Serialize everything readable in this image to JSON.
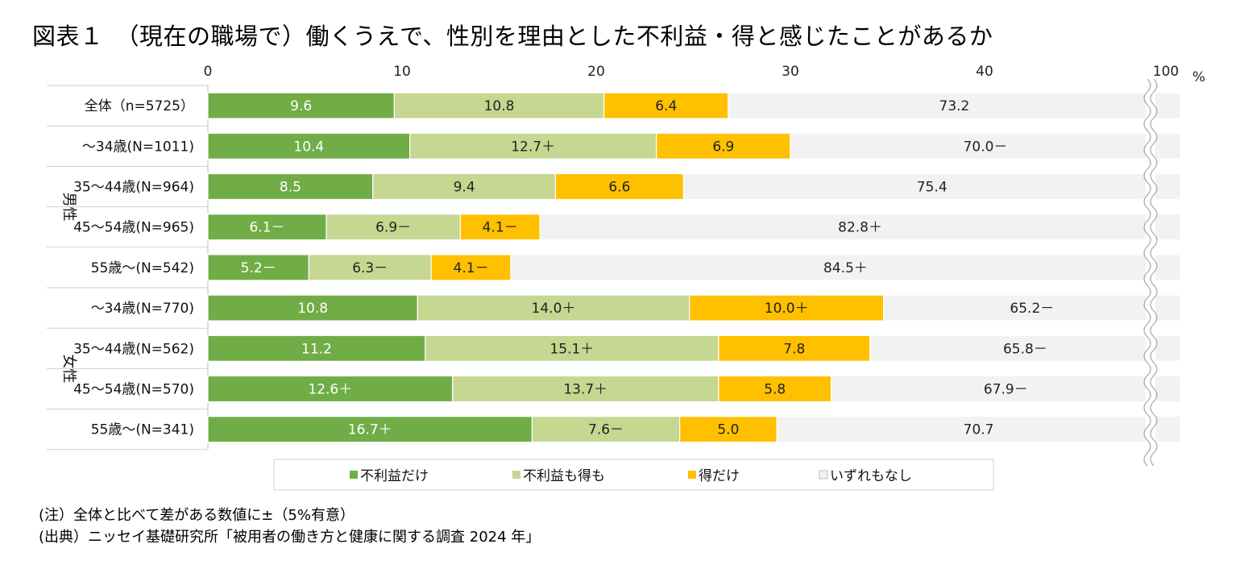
{
  "title": "図表１　（現在の職場で）働くうえで、性別を理由とした不利益・得と感じたことがあるか",
  "notes": {
    "note": "(注）全体と比べて差がある数値に±（5%有意）",
    "source": "(出典）ニッセイ基礎研究所「被用者の働き方と健康に関する調査 2024 年」"
  },
  "colors": {
    "disadvantage_only": "#70ad47",
    "both": "#c5d790",
    "advantage_only": "#ffc000",
    "none": "#f2f2f2"
  },
  "chart_data": {
    "type": "bar",
    "orientation": "horizontal",
    "stacked": true,
    "unit": "%",
    "title": "（現在の職場で）働くうえで、性別を理由とした不利益・得と感じたことがあるか",
    "x_ticks": [
      "0",
      "10",
      "20",
      "30",
      "40",
      "100"
    ],
    "axis_break": "40–100",
    "groups": [
      {
        "label": "",
        "rows": [
          0
        ]
      },
      {
        "label": "男性",
        "rows": [
          1,
          2,
          3,
          4
        ]
      },
      {
        "label": "女性",
        "rows": [
          5,
          6,
          7,
          8
        ]
      }
    ],
    "categories": [
      "全体（n=5725）",
      "～34歳(N=1011)",
      "35～44歳(N=964)",
      "45～54歳(N=965)",
      "55歳～(N=542)",
      "～34歳(N=770)",
      "35～44歳(N=562)",
      "45～54歳(N=570)",
      "55歳～(N=341)"
    ],
    "series": [
      {
        "name": "不利益だけ",
        "values": [
          9.6,
          10.4,
          8.5,
          6.1,
          5.2,
          10.8,
          11.2,
          12.6,
          16.7
        ],
        "labels": [
          "9.6",
          "10.4",
          "8.5",
          "6.1－",
          "5.2－",
          "10.8",
          "11.2",
          "12.6＋",
          "16.7＋"
        ]
      },
      {
        "name": "不利益も得も",
        "values": [
          10.8,
          12.7,
          9.4,
          6.9,
          6.3,
          14.0,
          15.1,
          13.7,
          7.6
        ],
        "labels": [
          "10.8",
          "12.7＋",
          "9.4",
          "6.9－",
          "6.3－",
          "14.0＋",
          "15.1＋",
          "13.7＋",
          "7.6－"
        ]
      },
      {
        "name": "得だけ",
        "values": [
          6.4,
          6.9,
          6.6,
          4.1,
          4.1,
          10.0,
          7.8,
          5.8,
          5.0
        ],
        "labels": [
          "6.4",
          "6.9",
          "6.6",
          "4.1－",
          "4.1－",
          "10.0＋",
          "7.8",
          "5.8",
          "5.0"
        ]
      },
      {
        "name": "いずれもなし",
        "values": [
          73.2,
          70.0,
          75.4,
          82.8,
          84.5,
          65.2,
          65.8,
          67.9,
          70.7
        ],
        "labels": [
          "73.2",
          "70.0－",
          "75.4",
          "82.8＋",
          "84.5＋",
          "65.2－",
          "65.8－",
          "67.9－",
          "70.7"
        ]
      }
    ],
    "legend": [
      "不利益だけ",
      "不利益も得も",
      "得だけ",
      "いずれもなし"
    ],
    "legend_position": "bottom"
  }
}
